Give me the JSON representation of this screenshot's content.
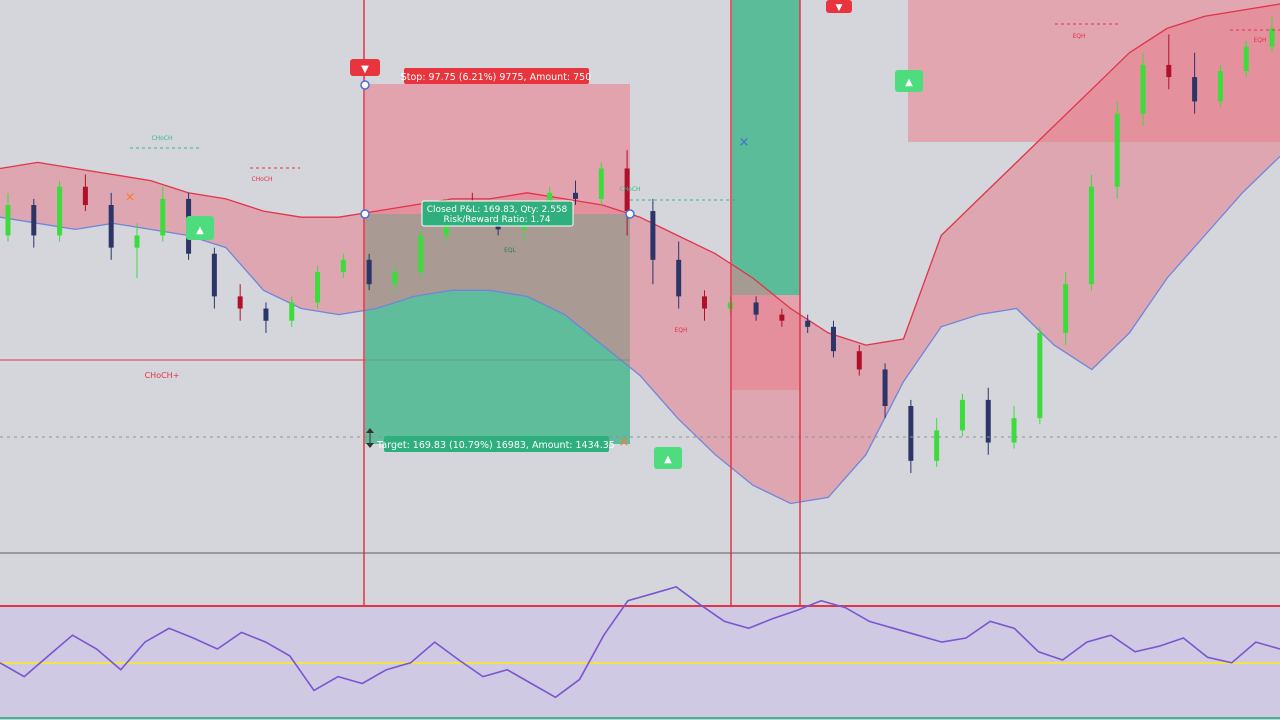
{
  "colors": {
    "background": "#d4d6db",
    "bull_candle": "#3ddc3d",
    "bear_candle": "#b0102a",
    "neutral_candle": "#2c3468",
    "stop_zone": "#e59aa6",
    "target_zone": "#3fb68a",
    "upper_band": "#e57f8c",
    "lower_band": "#8c9ee2",
    "oscillator_line": "#7b55cf",
    "oscillator_bg": "#cfc9e4",
    "signal_red": "#e8353d",
    "signal_green": "#4fdc7f",
    "level_line": "#e2334a",
    "yellow_line": "#f3e24e"
  },
  "trade": {
    "stop_label": "Stop: 97.75 (6.21%) 9775, Amount: 750",
    "closed_label_line1": "Closed P&L: 169.83, Qty: 2.558",
    "closed_label_line2": "Risk/Reward Ratio: 1.74",
    "target_label": "Target: 169.83 (10.79%) 16983, Amount: 1434.35"
  },
  "annotations": {
    "chch_main": "CHoCH+",
    "chch_small_1": "CHoCH",
    "chch_small_2": "CHoCH",
    "chch_small_3": "CHoCH",
    "eqh_1": "EQH",
    "eqh_2": "EQH",
    "eqh_3": "EQH",
    "eql_1": "EQL",
    "sell_signal_1": "▼",
    "sell_signal_2": "▼",
    "buy_signal_1": "▲",
    "buy_signal_2": "▲",
    "buy_signal_3": "▲"
  },
  "chart_data": {
    "type": "candlestick",
    "title": "",
    "xlabel": "",
    "ylabel": "",
    "ylim": [
      90,
      178
    ],
    "candles": [
      [
        140,
        147,
        139,
        145
      ],
      [
        145,
        146,
        138,
        140
      ],
      [
        140,
        149,
        139,
        148
      ],
      [
        148,
        150,
        144,
        145
      ],
      [
        145,
        147,
        136,
        138
      ],
      [
        138,
        142,
        133,
        140
      ],
      [
        140,
        148,
        139,
        146
      ],
      [
        146,
        147,
        136,
        137
      ],
      [
        137,
        138,
        128,
        130
      ],
      [
        130,
        132,
        126,
        128
      ],
      [
        128,
        129,
        124,
        126
      ],
      [
        126,
        130,
        125,
        129
      ],
      [
        129,
        135,
        128,
        134
      ],
      [
        134,
        137,
        133,
        136
      ],
      [
        136,
        137,
        131,
        132
      ],
      [
        132,
        135,
        131,
        134
      ],
      [
        134,
        141,
        133,
        140
      ],
      [
        140,
        146,
        139,
        145
      ],
      [
        145,
        147,
        142,
        143
      ],
      [
        143,
        144,
        140,
        141
      ],
      [
        141,
        143,
        139,
        142
      ],
      [
        142,
        148,
        141,
        147
      ],
      [
        147,
        149,
        145,
        146
      ],
      [
        146,
        152,
        145,
        151
      ],
      [
        151,
        154,
        140,
        144
      ],
      [
        144,
        146,
        132,
        136
      ],
      [
        136,
        139,
        128,
        130
      ],
      [
        130,
        131,
        126,
        128
      ],
      [
        128,
        130,
        127,
        129
      ],
      [
        129,
        130,
        126,
        127
      ],
      [
        127,
        128,
        125,
        126
      ],
      [
        126,
        127,
        124,
        125
      ],
      [
        125,
        126,
        120,
        121
      ],
      [
        121,
        122,
        117,
        118
      ],
      [
        118,
        119,
        110,
        112
      ],
      [
        112,
        113,
        101,
        103
      ],
      [
        103,
        110,
        102,
        108
      ],
      [
        108,
        114,
        107,
        113
      ],
      [
        113,
        115,
        104,
        106
      ],
      [
        106,
        112,
        105,
        110
      ],
      [
        110,
        125,
        109,
        124
      ],
      [
        124,
        134,
        122,
        132
      ],
      [
        132,
        150,
        131,
        148
      ],
      [
        148,
        162,
        146,
        160
      ],
      [
        160,
        170,
        158,
        168
      ],
      [
        168,
        173,
        164,
        166
      ],
      [
        166,
        170,
        160,
        162
      ],
      [
        162,
        168,
        161,
        167
      ],
      [
        167,
        172,
        166,
        171
      ],
      [
        171,
        176,
        170,
        174
      ]
    ],
    "upper_band": [
      151,
      152,
      151,
      150,
      149,
      147,
      146,
      144,
      143,
      143,
      144,
      145,
      146,
      146,
      147,
      146,
      145,
      143,
      140,
      137,
      133,
      128,
      124,
      122,
      123,
      140,
      146,
      152,
      158,
      164,
      170,
      174,
      176,
      177,
      178
    ],
    "lower_band": [
      143,
      142,
      141,
      142,
      141,
      140,
      138,
      131,
      128,
      127,
      128,
      130,
      131,
      131,
      130,
      127,
      122,
      117,
      110,
      104,
      99,
      96,
      97,
      104,
      116,
      125,
      127,
      128,
      122,
      118,
      124,
      133,
      140,
      147,
      153
    ],
    "oscillator": {
      "ylim": [
        0,
        100
      ],
      "values": [
        40,
        30,
        45,
        60,
        50,
        35,
        55,
        65,
        58,
        50,
        62,
        55,
        45,
        20,
        30,
        25,
        35,
        40,
        55,
        42,
        30,
        35,
        25,
        15,
        28,
        60,
        85,
        90,
        95,
        82,
        70,
        65,
        72,
        78,
        85,
        80,
        70,
        65,
        60,
        55,
        58,
        70,
        65,
        48,
        42,
        55,
        60,
        48,
        52,
        58,
        44,
        40,
        55,
        50
      ],
      "overbought": 82,
      "midline": 45
    }
  }
}
